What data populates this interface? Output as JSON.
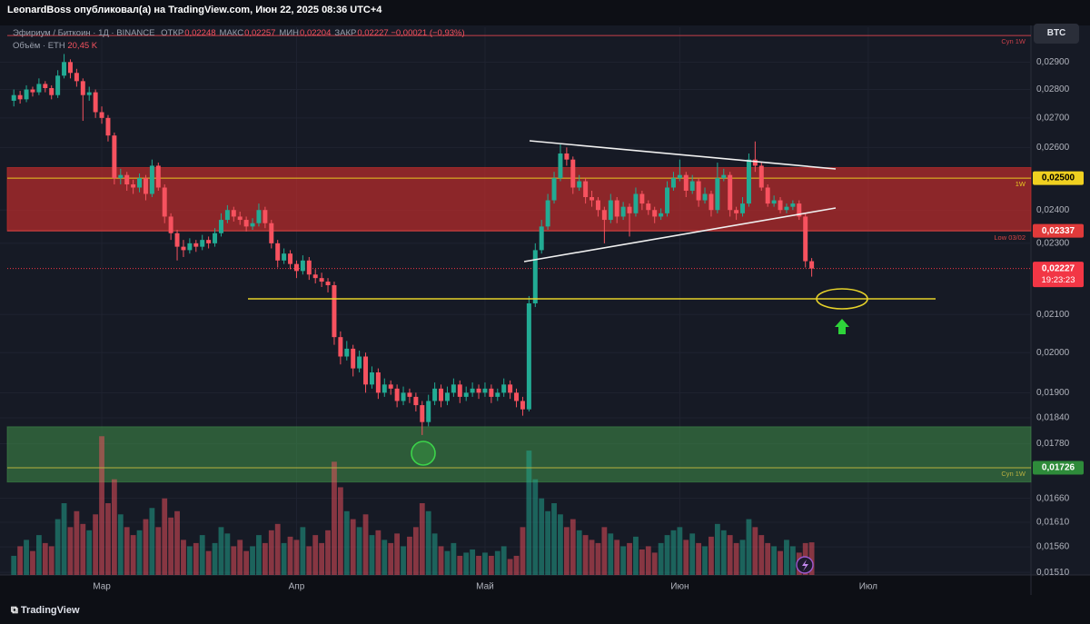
{
  "header": {
    "caption": "LeonardBoss опубликовал(а) на TradingView.com, Июн 22, 2025 08:36 UTC+4",
    "symbol": "Эфириум / Биткоин · 1Д · BINANCE",
    "ohlc": [
      {
        "label": "ОТКР",
        "value": "0,02248"
      },
      {
        "label": "МАКС",
        "value": "0,02257"
      },
      {
        "label": "МИН",
        "value": "0,02204"
      },
      {
        "label": "ЗАКР",
        "value": "0,02227"
      }
    ],
    "change": "−0,00021 (−0,93%)",
    "volume_label": "Объём · ETH",
    "volume_value": "20,45 K",
    "currency_button": "BTC",
    "logo": "TradingView"
  },
  "chart_data": {
    "type": "candlestick",
    "log_scale": true,
    "grid": true,
    "up_color": "#22ab94",
    "down_color": "#f7525f",
    "ylim": [
      0.01505,
      0.03032
    ],
    "yticks": [
      {
        "value": 0.029,
        "label": "0,02900"
      },
      {
        "value": 0.028,
        "label": "0,02800"
      },
      {
        "value": 0.027,
        "label": "0,02700"
      },
      {
        "value": 0.026,
        "label": "0,02600"
      },
      {
        "value": 0.024,
        "label": "0,02400"
      },
      {
        "value": 0.023,
        "label": "0,02300"
      },
      {
        "value": 0.021,
        "label": "0,02100"
      },
      {
        "value": 0.02,
        "label": "0,02000"
      },
      {
        "value": 0.019,
        "label": "0,01900"
      },
      {
        "value": 0.0184,
        "label": "0,01840"
      },
      {
        "value": 0.0178,
        "label": "0,01780"
      },
      {
        "value": 0.0166,
        "label": "0,01660"
      },
      {
        "value": 0.0161,
        "label": "0,01610"
      },
      {
        "value": 0.0156,
        "label": "0,01560"
      },
      {
        "value": 0.0151,
        "label": "0,01510"
      }
    ],
    "xlim": [
      -2.2,
      161.9
    ],
    "xticks": [
      {
        "value": 14,
        "label": "Мар"
      },
      {
        "value": 45,
        "label": "Апр"
      },
      {
        "value": 75,
        "label": "Май"
      },
      {
        "value": 106,
        "label": "Июн"
      },
      {
        "value": 136,
        "label": "Июл"
      }
    ],
    "zones": [
      {
        "from": 0.02337,
        "to": 0.02534,
        "color": "rgba(196,44,44,0.68)"
      },
      {
        "from": 0.01695,
        "to": 0.01819,
        "color": "rgba(62,140,72,0.58)"
      }
    ],
    "price_lines": [
      {
        "value": 0.03,
        "note": "Cyn 1W",
        "line_color": "#c8404a"
      },
      {
        "value": 0.025,
        "label": "0,02500",
        "note": "1W",
        "color": "#f0d020",
        "line_color": "#e8c820"
      },
      {
        "value": 0.02337,
        "label": "0,02337",
        "note": "Low 03/02",
        "color": "#e03a3a",
        "line_color": "#d84545"
      },
      {
        "value": 0.02227,
        "label": "0,02227",
        "sub": "19:23:23",
        "color": "#f23645",
        "line_color": "#f23645",
        "dotted": true
      },
      {
        "value": 0.01726,
        "label": "0,01726",
        "note": "Cyn 1W",
        "color": "#2e8b3a",
        "line_color": "#b8b040"
      }
    ],
    "candles": [
      [
        0.0276,
        0.028,
        0.0274,
        0.0278
      ],
      [
        0.0278,
        0.02795,
        0.0275,
        0.02765
      ],
      [
        0.02765,
        0.02815,
        0.02755,
        0.028
      ],
      [
        0.028,
        0.0281,
        0.02775,
        0.0279
      ],
      [
        0.0279,
        0.0284,
        0.0278,
        0.0282
      ],
      [
        0.0282,
        0.0283,
        0.0279,
        0.02805
      ],
      [
        0.02805,
        0.02815,
        0.02765,
        0.0278
      ],
      [
        0.0278,
        0.0287,
        0.0277,
        0.0285
      ],
      [
        0.0285,
        0.0293,
        0.0284,
        0.029
      ],
      [
        0.029,
        0.0291,
        0.0284,
        0.0286
      ],
      [
        0.0286,
        0.02875,
        0.0281,
        0.0283
      ],
      [
        0.0283,
        0.0284,
        0.0269,
        0.0278
      ],
      [
        0.0278,
        0.0281,
        0.0276,
        0.0279
      ],
      [
        0.0279,
        0.028,
        0.027,
        0.0272
      ],
      [
        0.0272,
        0.0274,
        0.0268,
        0.027
      ],
      [
        0.027,
        0.0271,
        0.0262,
        0.0264
      ],
      [
        0.0264,
        0.0265,
        0.0248,
        0.025
      ],
      [
        0.025,
        0.0253,
        0.0248,
        0.0251
      ],
      [
        0.0251,
        0.0252,
        0.0246,
        0.0248
      ],
      [
        0.0248,
        0.02495,
        0.0245,
        0.0247
      ],
      [
        0.0247,
        0.02515,
        0.02455,
        0.025
      ],
      [
        0.025,
        0.0251,
        0.0243,
        0.0245
      ],
      [
        0.0245,
        0.0256,
        0.0244,
        0.0254
      ],
      [
        0.0254,
        0.0255,
        0.0246,
        0.0247
      ],
      [
        0.0247,
        0.0248,
        0.0236,
        0.0238
      ],
      [
        0.0238,
        0.0239,
        0.0231,
        0.0233
      ],
      [
        0.0233,
        0.0234,
        0.0225,
        0.0229
      ],
      [
        0.0229,
        0.0231,
        0.0226,
        0.0228
      ],
      [
        0.0228,
        0.02315,
        0.0227,
        0.023
      ],
      [
        0.023,
        0.0231,
        0.02275,
        0.0229
      ],
      [
        0.0229,
        0.02325,
        0.0228,
        0.0231
      ],
      [
        0.0231,
        0.0232,
        0.02285,
        0.023
      ],
      [
        0.023,
        0.02345,
        0.0229,
        0.0233
      ],
      [
        0.0233,
        0.0239,
        0.0232,
        0.0237
      ],
      [
        0.0237,
        0.02415,
        0.0236,
        0.024
      ],
      [
        0.024,
        0.0241,
        0.02365,
        0.0238
      ],
      [
        0.0238,
        0.02395,
        0.02355,
        0.0237
      ],
      [
        0.0237,
        0.0238,
        0.02335,
        0.0235
      ],
      [
        0.0235,
        0.02375,
        0.0234,
        0.0236
      ],
      [
        0.0236,
        0.0242,
        0.0235,
        0.024
      ],
      [
        0.024,
        0.0241,
        0.02345,
        0.0236
      ],
      [
        0.0236,
        0.0237,
        0.02285,
        0.023
      ],
      [
        0.023,
        0.0231,
        0.0223,
        0.0225
      ],
      [
        0.0225,
        0.02285,
        0.0224,
        0.0227
      ],
      [
        0.0227,
        0.0228,
        0.02225,
        0.0224
      ],
      [
        0.0224,
        0.0225,
        0.022,
        0.0222
      ],
      [
        0.0222,
        0.02265,
        0.0221,
        0.0225
      ],
      [
        0.0225,
        0.0226,
        0.02195,
        0.0221
      ],
      [
        0.0221,
        0.02225,
        0.02185,
        0.022
      ],
      [
        0.022,
        0.02215,
        0.02175,
        0.0219
      ],
      [
        0.0219,
        0.022,
        0.0216,
        0.0218
      ],
      [
        0.0218,
        0.0219,
        0.0202,
        0.0204
      ],
      [
        0.0204,
        0.02055,
        0.0197,
        0.0199
      ],
      [
        0.0199,
        0.0203,
        0.0198,
        0.0201
      ],
      [
        0.0201,
        0.0202,
        0.0194,
        0.0196
      ],
      [
        0.0196,
        0.02005,
        0.0195,
        0.0199
      ],
      [
        0.0199,
        0.02,
        0.019,
        0.0192
      ],
      [
        0.0192,
        0.01965,
        0.0191,
        0.0195
      ],
      [
        0.0195,
        0.0196,
        0.01885,
        0.019
      ],
      [
        0.019,
        0.01935,
        0.0189,
        0.0192
      ],
      [
        0.0192,
        0.0193,
        0.01895,
        0.0191
      ],
      [
        0.0191,
        0.0192,
        0.01865,
        0.0188
      ],
      [
        0.0188,
        0.01915,
        0.0187,
        0.019
      ],
      [
        0.019,
        0.0191,
        0.01875,
        0.0189
      ],
      [
        0.0189,
        0.019,
        0.01855,
        0.0187
      ],
      [
        0.0187,
        0.0188,
        0.018,
        0.0183
      ],
      [
        0.0183,
        0.01895,
        0.0182,
        0.0188
      ],
      [
        0.0188,
        0.01925,
        0.0187,
        0.0191
      ],
      [
        0.0191,
        0.0192,
        0.01865,
        0.0188
      ],
      [
        0.0188,
        0.01915,
        0.0187,
        0.019
      ],
      [
        0.019,
        0.01935,
        0.0189,
        0.0192
      ],
      [
        0.0192,
        0.0193,
        0.01875,
        0.0189
      ],
      [
        0.0189,
        0.01915,
        0.0188,
        0.019
      ],
      [
        0.019,
        0.01925,
        0.0189,
        0.0191
      ],
      [
        0.0191,
        0.0192,
        0.01885,
        0.019
      ],
      [
        0.019,
        0.01925,
        0.0189,
        0.0191
      ],
      [
        0.0191,
        0.0192,
        0.01875,
        0.0189
      ],
      [
        0.0189,
        0.0191,
        0.0188,
        0.019
      ],
      [
        0.019,
        0.01935,
        0.0189,
        0.0192
      ],
      [
        0.0192,
        0.0193,
        0.01885,
        0.019
      ],
      [
        0.019,
        0.0191,
        0.01865,
        0.0188
      ],
      [
        0.0188,
        0.0189,
        0.01845,
        0.0186
      ],
      [
        0.0186,
        0.0215,
        0.01855,
        0.0213
      ],
      [
        0.0213,
        0.023,
        0.0212,
        0.0228
      ],
      [
        0.0228,
        0.0237,
        0.0227,
        0.0235
      ],
      [
        0.0235,
        0.0245,
        0.0234,
        0.0243
      ],
      [
        0.0243,
        0.0252,
        0.0242,
        0.025
      ],
      [
        0.025,
        0.0261,
        0.0249,
        0.0258
      ],
      [
        0.0258,
        0.026,
        0.0254,
        0.0256
      ],
      [
        0.0256,
        0.0257,
        0.0245,
        0.0247
      ],
      [
        0.0247,
        0.0251,
        0.0246,
        0.0249
      ],
      [
        0.0249,
        0.025,
        0.0242,
        0.0244
      ],
      [
        0.0244,
        0.0246,
        0.0241,
        0.0243
      ],
      [
        0.0243,
        0.0244,
        0.0238,
        0.024
      ],
      [
        0.024,
        0.0241,
        0.023,
        0.0237
      ],
      [
        0.0237,
        0.0245,
        0.0236,
        0.0243
      ],
      [
        0.0243,
        0.0244,
        0.0236,
        0.0238
      ],
      [
        0.0238,
        0.02425,
        0.0237,
        0.0241
      ],
      [
        0.0241,
        0.0242,
        0.0232,
        0.0239
      ],
      [
        0.0239,
        0.0247,
        0.0238,
        0.0245
      ],
      [
        0.0245,
        0.0246,
        0.024,
        0.0242
      ],
      [
        0.0242,
        0.0243,
        0.02385,
        0.024
      ],
      [
        0.024,
        0.0241,
        0.0236,
        0.0238
      ],
      [
        0.0238,
        0.02405,
        0.0237,
        0.0239
      ],
      [
        0.0239,
        0.0249,
        0.0238,
        0.0247
      ],
      [
        0.0247,
        0.0252,
        0.0246,
        0.025
      ],
      [
        0.025,
        0.0256,
        0.0249,
        0.0251
      ],
      [
        0.0251,
        0.0252,
        0.0244,
        0.0246
      ],
      [
        0.0246,
        0.0251,
        0.0245,
        0.0249
      ],
      [
        0.0249,
        0.025,
        0.0241,
        0.0243
      ],
      [
        0.0243,
        0.0247,
        0.0242,
        0.0245
      ],
      [
        0.0245,
        0.0246,
        0.0238,
        0.024
      ],
      [
        0.024,
        0.0255,
        0.0239,
        0.025
      ],
      [
        0.025,
        0.0253,
        0.0249,
        0.0251
      ],
      [
        0.0251,
        0.0252,
        0.0238,
        0.024
      ],
      [
        0.024,
        0.0241,
        0.0237,
        0.0239
      ],
      [
        0.0239,
        0.0244,
        0.0238,
        0.0242
      ],
      [
        0.0242,
        0.0258,
        0.0241,
        0.0256
      ],
      [
        0.0256,
        0.0262,
        0.0252,
        0.0254
      ],
      [
        0.0254,
        0.0255,
        0.0246,
        0.0247
      ],
      [
        0.0247,
        0.0248,
        0.0241,
        0.0242
      ],
      [
        0.0242,
        0.02445,
        0.0241,
        0.0243
      ],
      [
        0.0243,
        0.0244,
        0.0239,
        0.024
      ],
      [
        0.024,
        0.0242,
        0.0239,
        0.0241
      ],
      [
        0.0241,
        0.0243,
        0.024,
        0.0242
      ],
      [
        0.0242,
        0.0243,
        0.0237,
        0.0238
      ],
      [
        0.0238,
        0.0239,
        0.0223,
        0.02248
      ],
      [
        0.02248,
        0.02257,
        0.02204,
        0.02227
      ]
    ],
    "volume_lim": [
      0,
      90
    ],
    "volume": [
      12,
      18,
      22,
      15,
      25,
      20,
      18,
      35,
      45,
      30,
      40,
      32,
      28,
      38,
      87,
      45,
      60,
      38,
      30,
      25,
      28,
      35,
      42,
      30,
      48,
      36,
      40,
      22,
      18,
      20,
      25,
      15,
      20,
      30,
      26,
      18,
      22,
      15,
      18,
      25,
      20,
      28,
      32,
      20,
      24,
      22,
      30,
      18,
      25,
      20,
      28,
      71,
      55,
      40,
      35,
      30,
      38,
      25,
      28,
      22,
      20,
      26,
      18,
      24,
      30,
      45,
      40,
      26,
      18,
      15,
      20,
      12,
      14,
      16,
      12,
      14,
      12,
      15,
      18,
      10,
      12,
      30,
      78,
      60,
      48,
      40,
      45,
      38,
      30,
      35,
      28,
      25,
      22,
      20,
      30,
      26,
      22,
      18,
      20,
      24,
      16,
      18,
      14,
      20,
      25,
      28,
      30,
      22,
      26,
      20,
      18,
      24,
      32,
      28,
      25,
      20,
      22,
      35,
      30,
      25,
      20,
      18,
      15,
      22,
      18,
      14,
      20,
      20.45
    ]
  }
}
